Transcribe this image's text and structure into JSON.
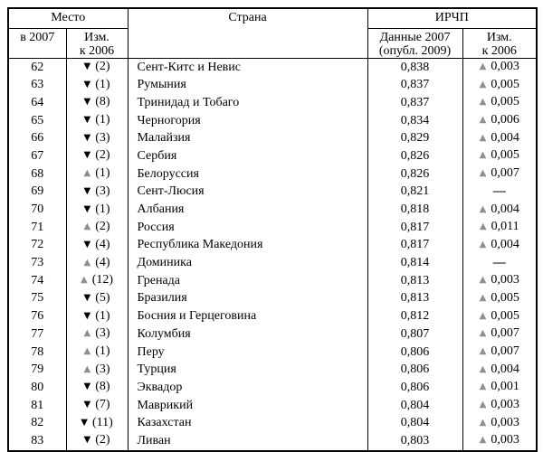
{
  "table": {
    "header": {
      "place_group": "Место",
      "place_year": "в 2007",
      "place_change_line1": "Изм.",
      "place_change_line2": "к 2006",
      "country": "Страна",
      "hdi_group": "ИРЧП",
      "hdi_data_line1": "Данные 2007",
      "hdi_data_line2": "(опубл. 2009)",
      "hdi_change_line1": "Изм.",
      "hdi_change_line2": "к 2006"
    },
    "markers": {
      "up": {
        "glyph": "▲",
        "color": "#8e8e8e",
        "name": "up-triangle-icon"
      },
      "down": {
        "glyph": "▼",
        "color": "#000000",
        "name": "down-triangle-icon"
      },
      "none": {
        "glyph": "",
        "color": "#000000",
        "name": "no-change"
      }
    },
    "rows": [
      {
        "rank": "62",
        "rank_dir": "down",
        "rank_change": "(2)",
        "country": "Сент-Китс и Невис",
        "hdi": "0,838",
        "hdi_dir": "up",
        "hdi_change": "0,003"
      },
      {
        "rank": "63",
        "rank_dir": "down",
        "rank_change": "(1)",
        "country": "Румыния",
        "hdi": "0,837",
        "hdi_dir": "up",
        "hdi_change": "0,005"
      },
      {
        "rank": "64",
        "rank_dir": "down",
        "rank_change": "(8)",
        "country": "Тринидад и Тобаго",
        "hdi": "0,837",
        "hdi_dir": "up",
        "hdi_change": "0,005"
      },
      {
        "rank": "65",
        "rank_dir": "down",
        "rank_change": "(1)",
        "country": "Черногория",
        "hdi": "0,834",
        "hdi_dir": "up",
        "hdi_change": "0,006"
      },
      {
        "rank": "66",
        "rank_dir": "down",
        "rank_change": "(3)",
        "country": "Малайзия",
        "hdi": "0,829",
        "hdi_dir": "up",
        "hdi_change": "0,004"
      },
      {
        "rank": "67",
        "rank_dir": "down",
        "rank_change": "(2)",
        "country": "Сербия",
        "hdi": "0,826",
        "hdi_dir": "up",
        "hdi_change": "0,005"
      },
      {
        "rank": "68",
        "rank_dir": "up",
        "rank_change": "(1)",
        "country": "Белоруссия",
        "hdi": "0,826",
        "hdi_dir": "up",
        "hdi_change": "0,007"
      },
      {
        "rank": "69",
        "rank_dir": "down",
        "rank_change": "(3)",
        "country": "Сент-Люсия",
        "hdi": "0,821",
        "hdi_dir": "none",
        "hdi_change": "—"
      },
      {
        "rank": "70",
        "rank_dir": "down",
        "rank_change": "(1)",
        "country": "Албания",
        "hdi": "0,818",
        "hdi_dir": "up",
        "hdi_change": "0,004"
      },
      {
        "rank": "71",
        "rank_dir": "up",
        "rank_change": "(2)",
        "country": "Россия",
        "hdi": "0,817",
        "hdi_dir": "up",
        "hdi_change": "0,011"
      },
      {
        "rank": "72",
        "rank_dir": "down",
        "rank_change": "(4)",
        "country": "Республика Македония",
        "hdi": "0,817",
        "hdi_dir": "up",
        "hdi_change": "0,004"
      },
      {
        "rank": "73",
        "rank_dir": "up",
        "rank_change": "(4)",
        "country": "Доминика",
        "hdi": "0,814",
        "hdi_dir": "none",
        "hdi_change": "—"
      },
      {
        "rank": "74",
        "rank_dir": "up",
        "rank_change": "(12)",
        "country": "Гренада",
        "hdi": "0,813",
        "hdi_dir": "up",
        "hdi_change": "0,003"
      },
      {
        "rank": "75",
        "rank_dir": "down",
        "rank_change": "(5)",
        "country": "Бразилия",
        "hdi": "0,813",
        "hdi_dir": "up",
        "hdi_change": "0,005"
      },
      {
        "rank": "76",
        "rank_dir": "down",
        "rank_change": "(1)",
        "country": "Босния и Герцеговина",
        "hdi": "0,812",
        "hdi_dir": "up",
        "hdi_change": "0,005"
      },
      {
        "rank": "77",
        "rank_dir": "up",
        "rank_change": "(3)",
        "country": "Колумбия",
        "hdi": "0,807",
        "hdi_dir": "up",
        "hdi_change": "0,007"
      },
      {
        "rank": "78",
        "rank_dir": "up",
        "rank_change": "(1)",
        "country": "Перу",
        "hdi": "0,806",
        "hdi_dir": "up",
        "hdi_change": "0,007"
      },
      {
        "rank": "79",
        "rank_dir": "up",
        "rank_change": "(3)",
        "country": "Турция",
        "hdi": "0,806",
        "hdi_dir": "up",
        "hdi_change": "0,004"
      },
      {
        "rank": "80",
        "rank_dir": "down",
        "rank_change": "(8)",
        "country": "Эквадор",
        "hdi": "0,806",
        "hdi_dir": "up",
        "hdi_change": "0,001"
      },
      {
        "rank": "81",
        "rank_dir": "down",
        "rank_change": "(7)",
        "country": "Маврикий",
        "hdi": "0,804",
        "hdi_dir": "up",
        "hdi_change": "0,003"
      },
      {
        "rank": "82",
        "rank_dir": "down",
        "rank_change": "(11)",
        "country": "Казахстан",
        "hdi": "0,804",
        "hdi_dir": "up",
        "hdi_change": "0,003"
      },
      {
        "rank": "83",
        "rank_dir": "down",
        "rank_change": "(2)",
        "country": "Ливан",
        "hdi": "0,803",
        "hdi_dir": "up",
        "hdi_change": "0,003"
      }
    ]
  }
}
